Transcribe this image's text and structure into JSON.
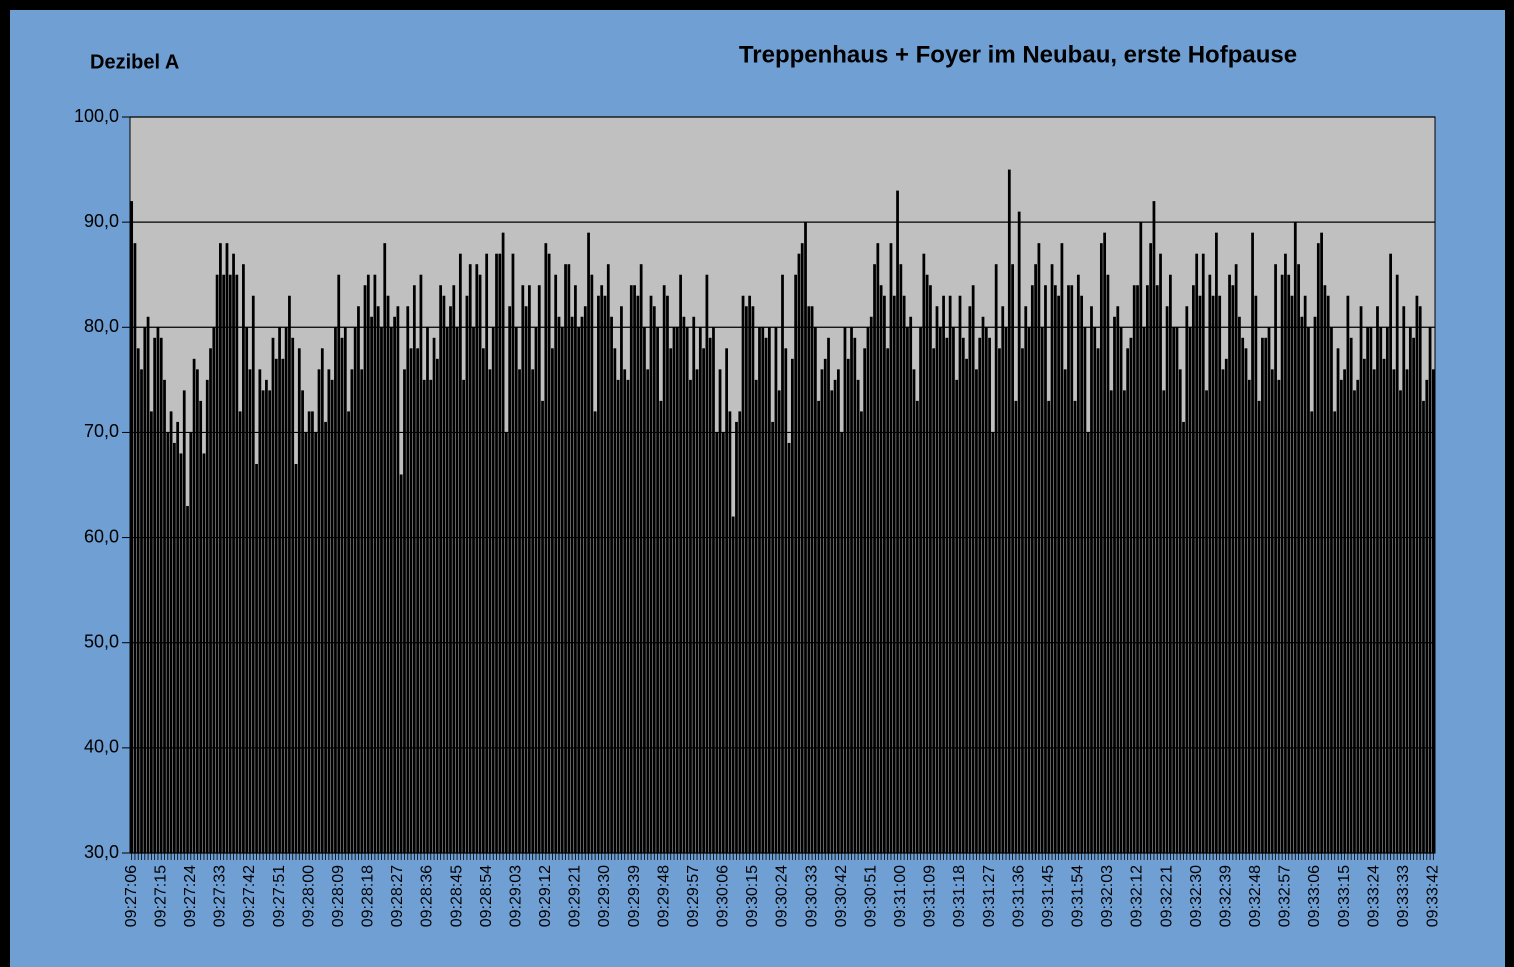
{
  "chart_data": {
    "type": "bar",
    "title": "Treppenhaus + Foyer im Neubau, erste Hofpause",
    "y_label": "Dezibel A",
    "color": "#000000",
    "plot_background": "#c0c0c0",
    "grid": true,
    "ylim": [
      30,
      100
    ],
    "yticks": [
      {
        "value": 30,
        "label": "30,0"
      },
      {
        "value": 40,
        "label": "40,0"
      },
      {
        "value": 50,
        "label": "50,0"
      },
      {
        "value": 60,
        "label": "60,0"
      },
      {
        "value": 70,
        "label": "70,0"
      },
      {
        "value": 80,
        "label": "80,0"
      },
      {
        "value": 90,
        "label": "90,0"
      },
      {
        "value": 100,
        "label": "100,0"
      }
    ],
    "categories": [
      "09:27:06",
      null,
      null,
      null,
      null,
      null,
      null,
      null,
      null,
      "09:27:15",
      null,
      null,
      null,
      null,
      null,
      null,
      null,
      null,
      "09:27:24",
      null,
      null,
      null,
      null,
      null,
      null,
      null,
      null,
      "09:27:33",
      null,
      null,
      null,
      null,
      null,
      null,
      null,
      null,
      "09:27:42",
      null,
      null,
      null,
      null,
      null,
      null,
      null,
      null,
      "09:27:51",
      null,
      null,
      null,
      null,
      null,
      null,
      null,
      null,
      "09:28:00",
      null,
      null,
      null,
      null,
      null,
      null,
      null,
      null,
      "09:28:09",
      null,
      null,
      null,
      null,
      null,
      null,
      null,
      null,
      "09:28:18",
      null,
      null,
      null,
      null,
      null,
      null,
      null,
      null,
      "09:28:27",
      null,
      null,
      null,
      null,
      null,
      null,
      null,
      null,
      "09:28:36",
      null,
      null,
      null,
      null,
      null,
      null,
      null,
      null,
      "09:28:45",
      null,
      null,
      null,
      null,
      null,
      null,
      null,
      null,
      "09:28:54",
      null,
      null,
      null,
      null,
      null,
      null,
      null,
      null,
      "09:29:03",
      null,
      null,
      null,
      null,
      null,
      null,
      null,
      null,
      "09:29:12",
      null,
      null,
      null,
      null,
      null,
      null,
      null,
      null,
      "09:29:21",
      null,
      null,
      null,
      null,
      null,
      null,
      null,
      null,
      "09:29:30",
      null,
      null,
      null,
      null,
      null,
      null,
      null,
      null,
      "09:29:39",
      null,
      null,
      null,
      null,
      null,
      null,
      null,
      null,
      "09:29:48",
      null,
      null,
      null,
      null,
      null,
      null,
      null,
      null,
      "09:29:57",
      null,
      null,
      null,
      null,
      null,
      null,
      null,
      null,
      "09:30:06",
      null,
      null,
      null,
      null,
      null,
      null,
      null,
      null,
      "09:30:15",
      null,
      null,
      null,
      null,
      null,
      null,
      null,
      null,
      "09:30:24",
      null,
      null,
      null,
      null,
      null,
      null,
      null,
      null,
      "09:30:33",
      null,
      null,
      null,
      null,
      null,
      null,
      null,
      null,
      "09:30:42",
      null,
      null,
      null,
      null,
      null,
      null,
      null,
      null,
      "09:30:51",
      null,
      null,
      null,
      null,
      null,
      null,
      null,
      null,
      "09:31:00",
      null,
      null,
      null,
      null,
      null,
      null,
      null,
      null,
      "09:31:09",
      null,
      null,
      null,
      null,
      null,
      null,
      null,
      null,
      "09:31:18",
      null,
      null,
      null,
      null,
      null,
      null,
      null,
      null,
      "09:31:27",
      null,
      null,
      null,
      null,
      null,
      null,
      null,
      null,
      "09:31:36",
      null,
      null,
      null,
      null,
      null,
      null,
      null,
      null,
      "09:31:45",
      null,
      null,
      null,
      null,
      null,
      null,
      null,
      null,
      "09:31:54",
      null,
      null,
      null,
      null,
      null,
      null,
      null,
      null,
      "09:32:03",
      null,
      null,
      null,
      null,
      null,
      null,
      null,
      null,
      "09:32:12",
      null,
      null,
      null,
      null,
      null,
      null,
      null,
      null,
      "09:32:21",
      null,
      null,
      null,
      null,
      null,
      null,
      null,
      null,
      "09:32:30",
      null,
      null,
      null,
      null,
      null,
      null,
      null,
      null,
      "09:32:39",
      null,
      null,
      null,
      null,
      null,
      null,
      null,
      null,
      "09:32:48",
      null,
      null,
      null,
      null,
      null,
      null,
      null,
      null,
      "09:32:57",
      null,
      null,
      null,
      null,
      null,
      null,
      null,
      null,
      "09:33:06",
      null,
      null,
      null,
      null,
      null,
      null,
      null,
      null,
      "09:33:15",
      null,
      null,
      null,
      null,
      null,
      null,
      null,
      null,
      "09:33:24",
      null,
      null,
      null,
      null,
      null,
      null,
      null,
      null,
      "09:33:33",
      null,
      null,
      null,
      null,
      null,
      null,
      null,
      null,
      "09:33:42"
    ],
    "values": [
      92,
      88,
      78,
      76,
      80,
      81,
      72,
      79,
      80,
      79,
      75,
      70,
      72,
      69,
      71,
      68,
      74,
      63,
      70,
      77,
      76,
      73,
      68,
      75,
      78,
      80,
      85,
      88,
      85,
      88,
      85,
      87,
      85,
      72,
      86,
      80,
      76,
      83,
      67,
      76,
      74,
      75,
      74,
      79,
      77,
      80,
      77,
      80,
      83,
      79,
      67,
      78,
      74,
      70,
      72,
      72,
      70,
      76,
      78,
      71,
      76,
      75,
      80,
      85,
      79,
      80,
      72,
      76,
      80,
      82,
      76,
      84,
      85,
      81,
      85,
      82,
      80,
      88,
      83,
      80,
      81,
      82,
      66,
      76,
      82,
      78,
      84,
      78,
      85,
      75,
      80,
      75,
      79,
      77,
      84,
      83,
      80,
      82,
      84,
      80,
      87,
      75,
      83,
      86,
      80,
      86,
      85,
      78,
      87,
      76,
      80,
      87,
      87,
      89,
      70,
      82,
      87,
      80,
      76,
      84,
      82,
      84,
      76,
      80,
      84,
      73,
      88,
      87,
      78,
      85,
      81,
      80,
      86,
      86,
      81,
      84,
      80,
      81,
      82,
      89,
      85,
      72,
      83,
      84,
      83,
      86,
      81,
      78,
      75,
      82,
      76,
      75,
      84,
      84,
      83,
      86,
      80,
      76,
      83,
      82,
      80,
      73,
      84,
      83,
      78,
      80,
      80,
      85,
      81,
      80,
      75,
      81,
      76,
      80,
      78,
      85,
      79,
      80,
      70,
      76,
      70,
      78,
      72,
      62,
      71,
      72,
      83,
      82,
      83,
      82,
      75,
      80,
      80,
      79,
      80,
      71,
      80,
      74,
      85,
      78,
      69,
      77,
      85,
      87,
      88,
      90,
      82,
      82,
      80,
      73,
      76,
      77,
      79,
      74,
      75,
      76,
      70,
      80,
      77,
      80,
      79,
      75,
      72,
      78,
      80,
      81,
      86,
      88,
      84,
      83,
      78,
      88,
      83,
      93,
      86,
      83,
      80,
      81,
      76,
      73,
      80,
      87,
      85,
      84,
      78,
      82,
      80,
      83,
      79,
      83,
      80,
      75,
      83,
      79,
      77,
      82,
      84,
      76,
      79,
      81,
      80,
      79,
      70,
      86,
      78,
      82,
      80,
      95,
      86,
      73,
      91,
      78,
      82,
      80,
      84,
      86,
      88,
      80,
      84,
      73,
      86,
      84,
      83,
      88,
      76,
      84,
      84,
      73,
      85,
      83,
      80,
      70,
      82,
      80,
      78,
      88,
      89,
      85,
      74,
      81,
      82,
      80,
      74,
      78,
      79,
      84,
      84,
      90,
      80,
      84,
      88,
      92,
      84,
      87,
      74,
      82,
      85,
      80,
      80,
      76,
      71,
      82,
      80,
      84,
      87,
      83,
      87,
      74,
      85,
      83,
      89,
      83,
      76,
      77,
      85,
      84,
      86,
      81,
      79,
      78,
      75,
      89,
      83,
      73,
      79,
      79,
      80,
      76,
      86,
      75,
      85,
      87,
      85,
      83,
      90,
      86,
      81,
      83,
      80,
      72,
      81,
      88,
      89,
      84,
      83,
      80,
      72,
      78,
      75,
      76,
      83,
      79,
      74,
      75,
      82,
      77,
      80,
      80,
      76,
      82,
      80,
      77,
      80,
      87,
      76,
      85,
      74,
      82,
      76,
      80,
      79,
      83,
      82,
      73,
      75,
      80,
      76
    ]
  }
}
